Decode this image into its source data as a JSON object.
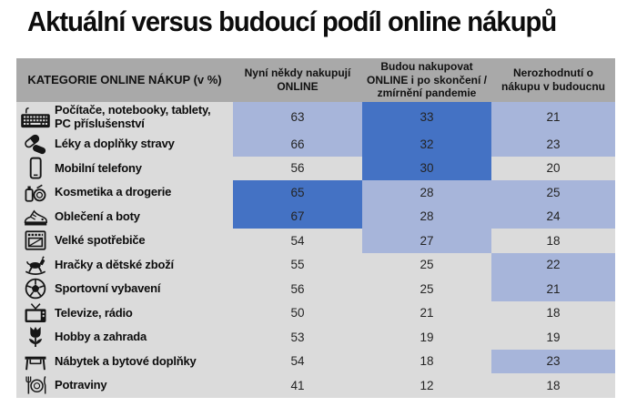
{
  "title": "Aktuální versus budoucí podíl online nákupů",
  "colors": {
    "dark_blue": "#4472c4",
    "light_blue": "#a7b5da",
    "row_gray": "#dbdbdb",
    "header_gray": "#a9a9a9"
  },
  "table": {
    "header": {
      "category": "KATEGORIE ONLINE NÁKUP (v %)",
      "col_now": "Nyní někdy nakupují ONLINE",
      "col_future": "Budou nakupovat ONLINE i po skončení / zmírnění pandemie",
      "col_undecided": "Nerozhodnutí o nákupu v budoucnu"
    },
    "rows": [
      {
        "icon": "keyboard-icon",
        "label": "Počítače, notebooky, tablety, PC příslušenství",
        "highlights": [
          "light",
          "dark",
          "light"
        ]
      },
      {
        "icon": "pills-icon",
        "label": "Léky a doplňky stravy",
        "highlights": [
          "light",
          "dark",
          "light"
        ]
      },
      {
        "icon": "smartphone-icon",
        "label": "Mobilní telefony",
        "highlights": [
          "none",
          "dark",
          "none"
        ]
      },
      {
        "icon": "cosmetics-icon",
        "label": "Kosmetika a drogerie",
        "highlights": [
          "dark",
          "light",
          "light"
        ]
      },
      {
        "icon": "sneaker-icon",
        "label": "Oblečení a boty",
        "highlights": [
          "dark",
          "light",
          "light"
        ]
      },
      {
        "icon": "oven-icon",
        "label": "Velké spotřebiče",
        "highlights": [
          "none",
          "light",
          "none"
        ]
      },
      {
        "icon": "rocking-horse-icon",
        "label": "Hračky a dětské zboží",
        "highlights": [
          "none",
          "none",
          "light"
        ]
      },
      {
        "icon": "soccer-ball-icon",
        "label": "Sportovní vybavení",
        "highlights": [
          "none",
          "none",
          "light"
        ]
      },
      {
        "icon": "tv-icon",
        "label": "Televize, rádio",
        "highlights": [
          "none",
          "none",
          "none"
        ]
      },
      {
        "icon": "tulip-icon",
        "label": "Hobby a zahrada",
        "highlights": [
          "none",
          "none",
          "none"
        ]
      },
      {
        "icon": "table-icon",
        "label": "Nábytek a bytové doplňky",
        "highlights": [
          "none",
          "none",
          "light"
        ]
      },
      {
        "icon": "cutlery-icon",
        "label": "Potraviny",
        "highlights": [
          "none",
          "none",
          "none"
        ]
      }
    ]
  },
  "chart_data": {
    "type": "table",
    "title": "Aktuální versus budoucí podíl online nákupů",
    "units": "%",
    "categories": [
      "Počítače, notebooky, tablety, PC příslušenství",
      "Léky a doplňky stravy",
      "Mobilní telefony",
      "Kosmetika a drogerie",
      "Oblečení a boty",
      "Velké spotřebiče",
      "Hračky a dětské zboží",
      "Sportovní vybavení",
      "Televize, rádio",
      "Hobby a zahrada",
      "Nábytek a bytové doplňky",
      "Potraviny"
    ],
    "series": [
      {
        "name": "Nyní někdy nakupují ONLINE",
        "values": [
          63,
          66,
          56,
          65,
          67,
          54,
          55,
          56,
          50,
          53,
          54,
          41
        ]
      },
      {
        "name": "Budou nakupovat ONLINE i po skončení / zmírnění pandemie",
        "values": [
          33,
          32,
          30,
          28,
          28,
          27,
          25,
          25,
          21,
          19,
          18,
          12
        ]
      },
      {
        "name": "Nerozhodnutí o nákupu v budoucnu",
        "values": [
          21,
          23,
          20,
          25,
          24,
          18,
          22,
          21,
          18,
          19,
          23,
          18
        ]
      }
    ],
    "cell_highlight_colors": {
      "dark": "#4472c4",
      "light": "#a7b5da",
      "none": "#dbdbdb"
    },
    "layout": "heatmap-style table, highlighted cells mark highest values per column"
  }
}
